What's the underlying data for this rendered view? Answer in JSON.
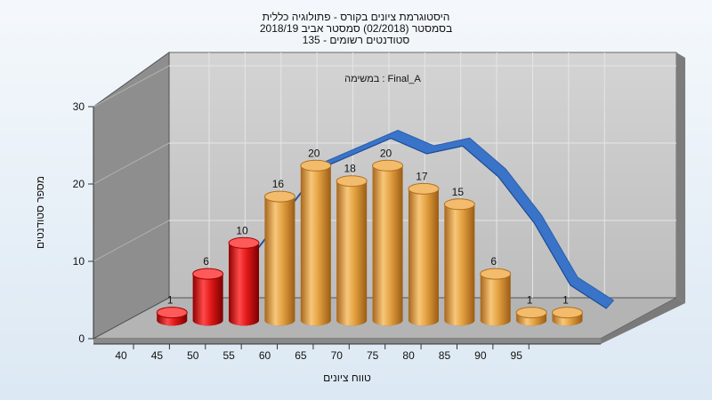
{
  "title_lines": [
    "היסטוגרמת ציונים בקורס - פתולוגיה כללית",
    "בסמסטר  (02/2018)  סמסטר אביב 2018/19",
    "סטודנטים רשומים - 135"
  ],
  "colors": {
    "fail_bar": "#e01818",
    "pass_bar": "#e3a040",
    "curve": "#3a74c8",
    "back_wall": "#c8c8c8",
    "side_wall": "#8e8e8e",
    "floor": "#b4b4b4"
  },
  "chart_data": {
    "type": "bar",
    "title": "",
    "subtitle": "Final_A : במשימה",
    "xlabel": "טווח ציונים",
    "ylabel": "מספר סטודנטים",
    "ylim": [
      0,
      30
    ],
    "yticks": [
      0,
      10,
      20,
      30
    ],
    "x_tick_labels": [
      "40",
      "45",
      "50",
      "55",
      "60",
      "65",
      "70",
      "75",
      "80",
      "85",
      "90",
      "95"
    ],
    "bar_bins": [
      "40-45",
      "45-50",
      "50-55",
      "55-60",
      "60-65",
      "65-70",
      "70-75",
      "75-80",
      "80-85",
      "85-90",
      "90-95",
      "95-100"
    ],
    "values": [
      1,
      6,
      10,
      16,
      20,
      18,
      20,
      17,
      15,
      6,
      1,
      1
    ],
    "fail_bins": 3,
    "data_labels": [
      "1",
      "6",
      "10",
      "16",
      "20",
      "18",
      "20",
      "17",
      "15",
      "6",
      "1",
      "1"
    ],
    "trend_curve": [
      {
        "x": 50,
        "y": 7
      },
      {
        "x": 55,
        "y": 13
      },
      {
        "x": 60,
        "y": 19
      },
      {
        "x": 65,
        "y": 21
      },
      {
        "x": 70,
        "y": 23
      },
      {
        "x": 75,
        "y": 21
      },
      {
        "x": 80,
        "y": 22
      },
      {
        "x": 85,
        "y": 18
      },
      {
        "x": 90,
        "y": 12
      },
      {
        "x": 95,
        "y": 4
      },
      {
        "x": 100,
        "y": 1
      }
    ],
    "grid": true
  }
}
